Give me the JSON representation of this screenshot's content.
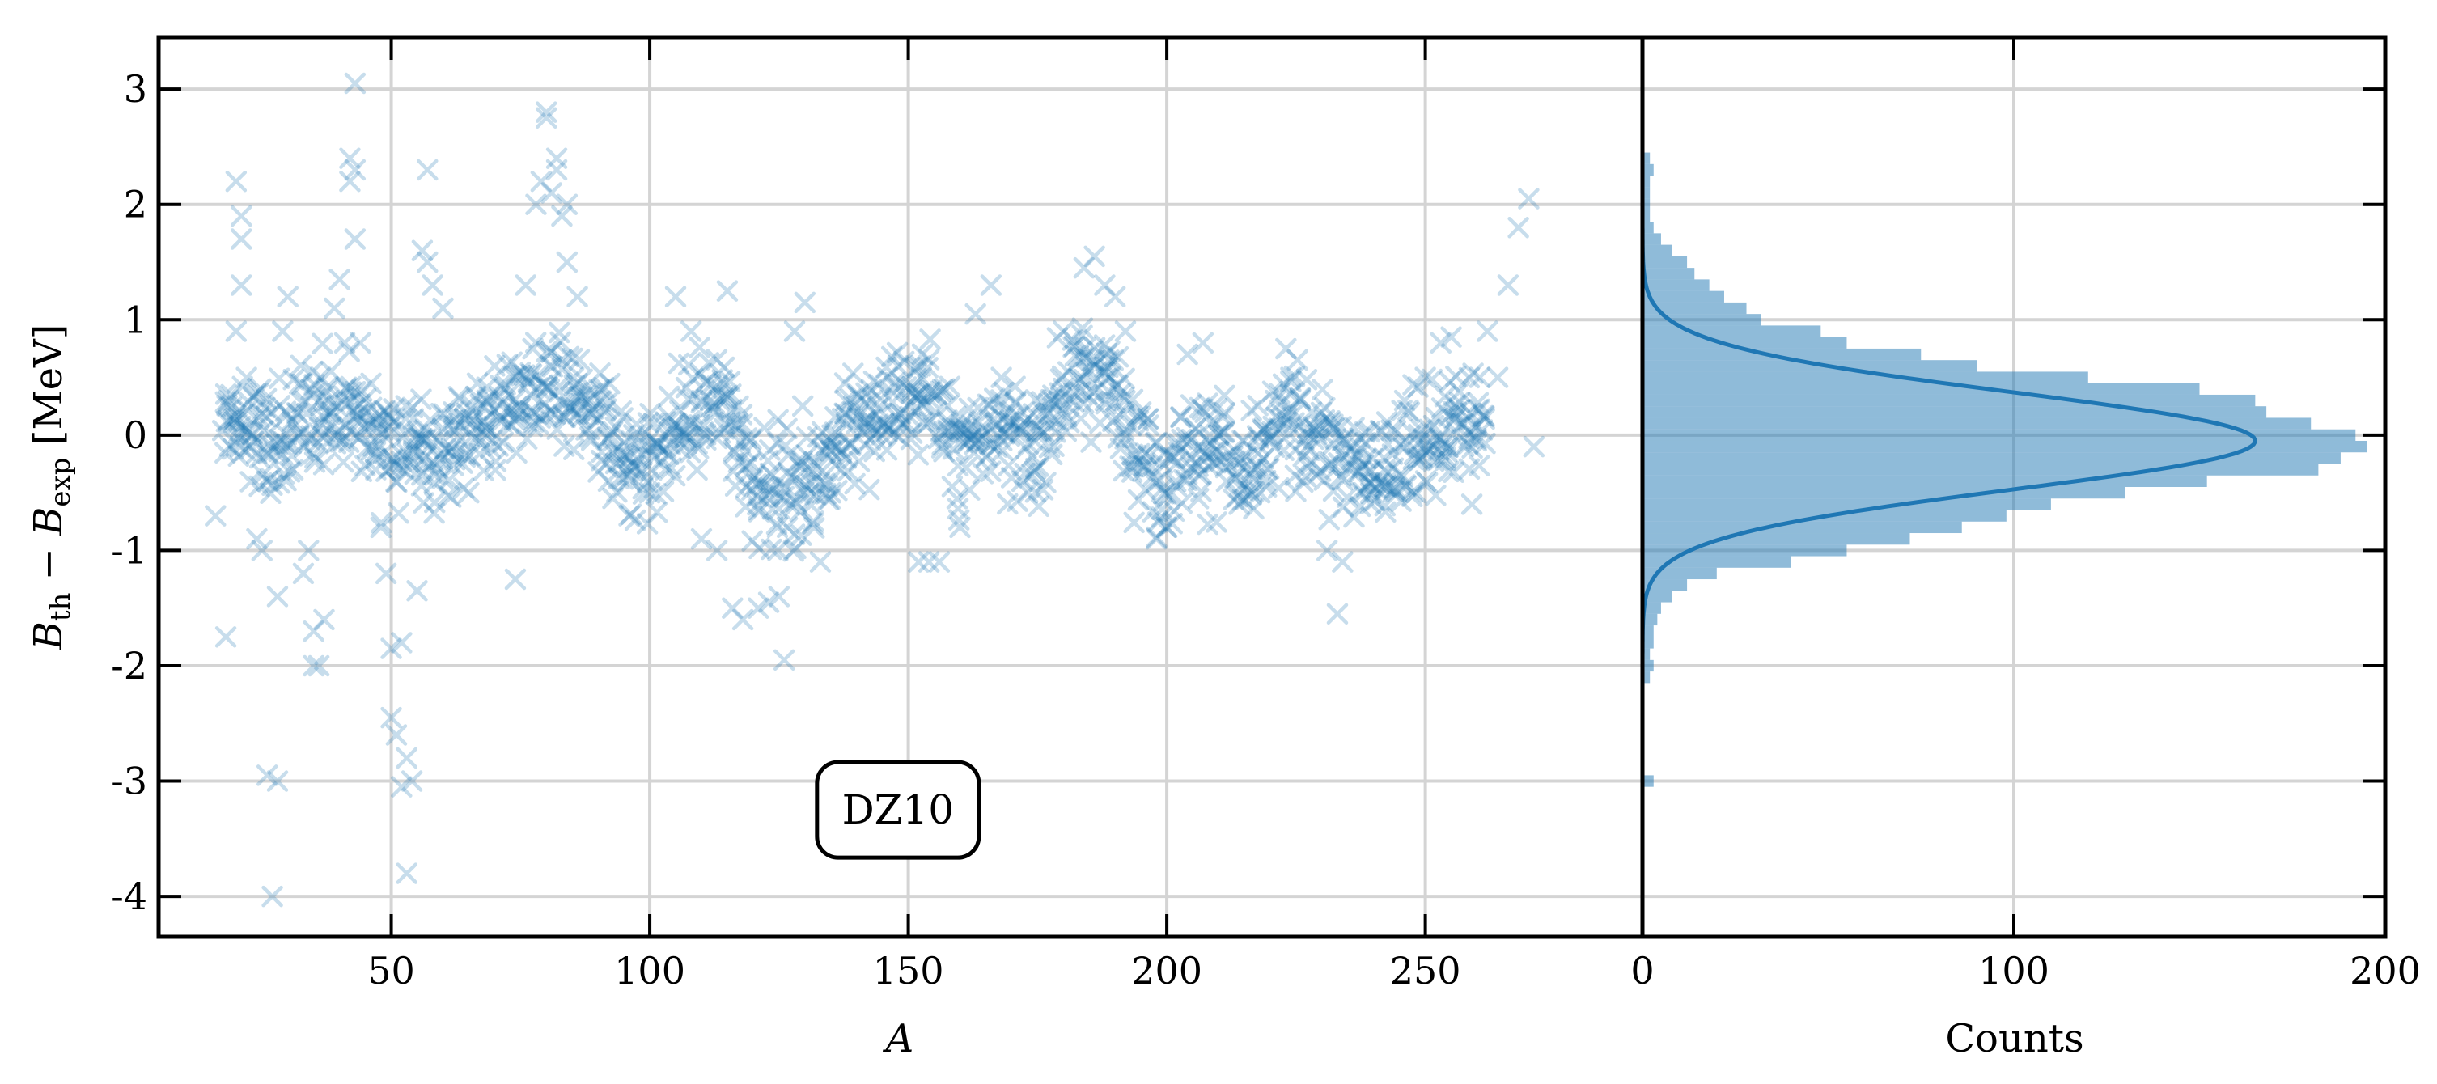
{
  "chart_data": [
    {
      "type": "scatter",
      "panel": "main",
      "xlabel": "A",
      "ylabel_parts": {
        "b": "B",
        "th": "th",
        "minus": " − ",
        "exp": "exp",
        "unit": " [MeV]"
      },
      "xlim": [
        5,
        292
      ],
      "ylim": [
        -4.35,
        3.45
      ],
      "xticks": [
        50,
        100,
        150,
        200,
        250
      ],
      "yticks": [
        3,
        2,
        1,
        0,
        -1,
        -2,
        -3,
        -4
      ],
      "ytick_labels": [
        "3",
        "2",
        "1",
        "0",
        "-1",
        "-2",
        "-3",
        "-4"
      ],
      "grid": true,
      "marker": "x",
      "color": "#1f77b4",
      "opacity": 0.25,
      "annotation": "DZ10",
      "annotation_pos": {
        "x": 148,
        "y": -3.25
      },
      "points": [
        [
          16,
          -0.7
        ],
        [
          18,
          -1.75
        ],
        [
          19,
          0.35
        ],
        [
          20,
          0.9
        ],
        [
          20,
          2.2
        ],
        [
          21,
          1.9
        ],
        [
          21,
          1.7
        ],
        [
          21,
          1.3
        ],
        [
          22,
          0.5
        ],
        [
          23,
          -0.1
        ],
        [
          24,
          -0.9
        ],
        [
          25,
          -1.0
        ],
        [
          26,
          -2.95
        ],
        [
          26,
          -0.4
        ],
        [
          27,
          -4.0
        ],
        [
          28,
          -3.0
        ],
        [
          28,
          -1.4
        ],
        [
          29,
          0.9
        ],
        [
          30,
          1.2
        ],
        [
          31,
          -0.3
        ],
        [
          33,
          -1.2
        ],
        [
          34,
          -1.0
        ],
        [
          35,
          -2.0
        ],
        [
          35,
          -1.7
        ],
        [
          36,
          -2.0
        ],
        [
          37,
          -1.6
        ],
        [
          38,
          0.3
        ],
        [
          39,
          1.1
        ],
        [
          40,
          1.35
        ],
        [
          41,
          0.8
        ],
        [
          42,
          2.4
        ],
        [
          42,
          2.2
        ],
        [
          43,
          2.3
        ],
        [
          43,
          3.05
        ],
        [
          43,
          1.7
        ],
        [
          44,
          0.8
        ],
        [
          45,
          0.2
        ],
        [
          47,
          -0.3
        ],
        [
          48,
          -0.8
        ],
        [
          49,
          -1.2
        ],
        [
          50,
          -1.85
        ],
        [
          50,
          -2.45
        ],
        [
          51,
          -2.6
        ],
        [
          52,
          -3.05
        ],
        [
          52,
          -1.8
        ],
        [
          53,
          -2.8
        ],
        [
          53,
          -3.8
        ],
        [
          54,
          -3.0
        ],
        [
          55,
          -1.35
        ],
        [
          56,
          1.6
        ],
        [
          57,
          2.3
        ],
        [
          57,
          1.5
        ],
        [
          58,
          1.3
        ],
        [
          60,
          1.1
        ],
        [
          62,
          0.2
        ],
        [
          65,
          -0.5
        ],
        [
          68,
          0.0
        ],
        [
          70,
          0.6
        ],
        [
          72,
          0.4
        ],
        [
          74,
          -1.25
        ],
        [
          76,
          1.3
        ],
        [
          78,
          2.0
        ],
        [
          79,
          2.2
        ],
        [
          80,
          2.8
        ],
        [
          80,
          2.75
        ],
        [
          81,
          2.1
        ],
        [
          82,
          2.3
        ],
        [
          82,
          2.4
        ],
        [
          83,
          1.9
        ],
        [
          84,
          2.0
        ],
        [
          84,
          1.5
        ],
        [
          86,
          1.2
        ],
        [
          88,
          0.3
        ],
        [
          92,
          -0.4
        ],
        [
          96,
          -0.7
        ],
        [
          100,
          -0.5
        ],
        [
          103,
          -0.3
        ],
        [
          105,
          1.2
        ],
        [
          108,
          0.9
        ],
        [
          110,
          -0.9
        ],
        [
          113,
          -1.0
        ],
        [
          115,
          1.25
        ],
        [
          116,
          -1.5
        ],
        [
          118,
          -1.6
        ],
        [
          121,
          -1.5
        ],
        [
          123,
          -1.45
        ],
        [
          125,
          -1.4
        ],
        [
          126,
          -1.95
        ],
        [
          128,
          0.9
        ],
        [
          130,
          1.15
        ],
        [
          133,
          -1.1
        ],
        [
          135,
          -0.5
        ],
        [
          138,
          -0.2
        ],
        [
          140,
          0.1
        ],
        [
          143,
          0.3
        ],
        [
          146,
          0.5
        ],
        [
          148,
          0.6
        ],
        [
          152,
          -1.1
        ],
        [
          154,
          -1.1
        ],
        [
          156,
          -1.1
        ],
        [
          160,
          -0.8
        ],
        [
          163,
          1.05
        ],
        [
          166,
          1.3
        ],
        [
          168,
          0.5
        ],
        [
          172,
          -0.4
        ],
        [
          176,
          0.2
        ],
        [
          180,
          0.9
        ],
        [
          184,
          1.45
        ],
        [
          186,
          1.55
        ],
        [
          188,
          1.3
        ],
        [
          190,
          1.2
        ],
        [
          192,
          0.9
        ],
        [
          195,
          0.2
        ],
        [
          198,
          -0.9
        ],
        [
          200,
          -0.8
        ],
        [
          204,
          0.7
        ],
        [
          207,
          0.8
        ],
        [
          210,
          0.0
        ],
        [
          214,
          -0.6
        ],
        [
          218,
          -0.5
        ],
        [
          221,
          0.3
        ],
        [
          224,
          0.5
        ],
        [
          228,
          0.2
        ],
        [
          231,
          -1.0
        ],
        [
          233,
          -1.55
        ],
        [
          234,
          -1.1
        ],
        [
          238,
          -0.5
        ],
        [
          242,
          -0.2
        ],
        [
          246,
          0.3
        ],
        [
          250,
          0.5
        ],
        [
          253,
          0.8
        ],
        [
          255,
          0.85
        ],
        [
          257,
          0.1
        ],
        [
          259,
          -0.6
        ],
        [
          262,
          0.9
        ],
        [
          264,
          0.5
        ],
        [
          266,
          1.3
        ],
        [
          268,
          1.8
        ],
        [
          270,
          2.05
        ],
        [
          271,
          -0.1
        ]
      ],
      "band": {
        "x_start": 18,
        "x_end": 262,
        "x_step": 1.5,
        "per_x": 8,
        "trend_x": [
          18,
          28,
          38,
          48,
          58,
          68,
          78,
          88,
          98,
          106,
          114,
          122,
          130,
          138,
          146,
          154,
          160,
          166,
          174,
          180,
          186,
          192,
          198,
          204,
          210,
          216,
          224,
          232,
          240,
          250,
          262
        ],
        "trend_y": [
          0.1,
          -0.1,
          0.3,
          0.0,
          -0.2,
          0.1,
          0.4,
          0.2,
          -0.3,
          0.1,
          0.3,
          -0.5,
          -0.4,
          0.0,
          0.2,
          0.4,
          -0.2,
          0.2,
          -0.2,
          0.4,
          0.6,
          0.2,
          -0.4,
          -0.1,
          -0.1,
          -0.4,
          0.2,
          -0.2,
          -0.3,
          -0.1,
          0.2
        ],
        "spread": 0.42
      }
    },
    {
      "type": "bar",
      "orientation": "horizontal",
      "panel": "histogram",
      "xlabel": "Counts",
      "xlim": [
        0,
        200
      ],
      "xticks": [
        0,
        100,
        200
      ],
      "grid": true,
      "color": "#1f77b4",
      "opacity": 0.5,
      "bin_width": 0.1,
      "bin_centers": [
        2.4,
        2.3,
        2.2,
        2.1,
        2.0,
        1.9,
        1.8,
        1.7,
        1.6,
        1.5,
        1.4,
        1.3,
        1.2,
        1.1,
        1.0,
        0.9,
        0.8,
        0.7,
        0.6,
        0.5,
        0.4,
        0.3,
        0.2,
        0.1,
        0.0,
        -0.1,
        -0.2,
        -0.3,
        -0.4,
        -0.5,
        -0.6,
        -0.7,
        -0.8,
        -0.9,
        -1.0,
        -1.1,
        -1.2,
        -1.3,
        -1.4,
        -1.5,
        -1.6,
        -1.7,
        -1.8,
        -1.9,
        -2.0,
        -2.1,
        -3.0
      ],
      "counts": [
        2,
        3,
        2,
        2,
        2,
        2,
        3,
        5,
        8,
        12,
        14,
        18,
        22,
        28,
        32,
        48,
        55,
        75,
        90,
        120,
        150,
        165,
        168,
        180,
        192,
        195,
        188,
        182,
        152,
        130,
        110,
        98,
        86,
        72,
        55,
        40,
        20,
        12,
        8,
        5,
        4,
        3,
        3,
        2,
        3,
        2,
        3
      ],
      "fit": {
        "mean": -0.05,
        "sigma": 0.42,
        "peak": 165
      }
    }
  ]
}
